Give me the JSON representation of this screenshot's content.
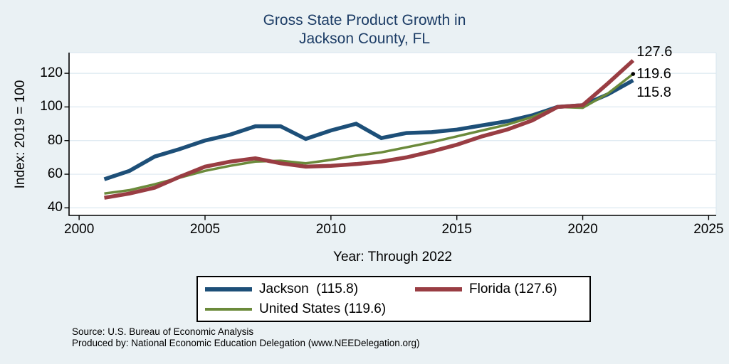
{
  "title": {
    "line1": "Gross State Product Growth in",
    "line2": "Jackson County, FL"
  },
  "footer": {
    "source": "Source: U.S. Bureau of Economic Analysis",
    "produced_by": "Produced by: National Economic Education Delegation (www.NEEDelegation.org)"
  },
  "colors": {
    "background": "#eaf1f4",
    "plot_background": "#ffffff",
    "gridline": "#dce8f0",
    "axis": "#000000",
    "title_text": "#1d3d66",
    "jackson_line": "#1d4f78",
    "florida_line": "#993d43",
    "united_states_line": "#6b8a3b",
    "end_marker": "#000000"
  },
  "chart_data": {
    "type": "line",
    "title": "Gross State Product Growth in Jackson County, FL",
    "xlabel": "Year: Through 2022",
    "ylabel": "Index: 2019 = 100",
    "x_ticks": [
      2000,
      2005,
      2010,
      2015,
      2020,
      2025
    ],
    "y_ticks": [
      40,
      60,
      80,
      100,
      120
    ],
    "xlim": [
      1999.6,
      2025.3
    ],
    "ylim": [
      35.5,
      132.3
    ],
    "grid": true,
    "legend_position": "bottom",
    "x": [
      2001,
      2002,
      2003,
      2004,
      2005,
      2006,
      2007,
      2008,
      2009,
      2010,
      2011,
      2012,
      2013,
      2014,
      2015,
      2016,
      2017,
      2018,
      2019,
      2020,
      2021,
      2022
    ],
    "series": [
      {
        "name": "Jackson",
        "legend_label": "Jackson  (115.8)",
        "color": "#1d4f78",
        "line_width": 5.5,
        "end_label": "115.8",
        "end_label_dy": 17,
        "end_marker": false,
        "values": [
          57,
          62,
          70.5,
          75,
          80,
          83.5,
          88.5,
          88.5,
          81,
          86,
          90,
          81.5,
          84.5,
          85,
          86.5,
          89,
          91.5,
          95,
          100,
          101,
          107.5,
          115.8
        ]
      },
      {
        "name": "Florida",
        "legend_label": "Florida (127.6)",
        "color": "#993d43",
        "line_width": 5.5,
        "end_label": "127.6",
        "end_label_dy": -12,
        "end_marker": false,
        "values": [
          46,
          48.5,
          52,
          58.5,
          64.5,
          67.5,
          69.5,
          66.5,
          64.5,
          65,
          66,
          67.5,
          70,
          73.5,
          77.5,
          82.5,
          86.5,
          92,
          100,
          101,
          114,
          127.6
        ]
      },
      {
        "name": "United States",
        "legend_label": "United States (119.6)",
        "color": "#6b8a3b",
        "line_width": 3.5,
        "end_label": "119.6",
        "end_label_dy": 0,
        "end_marker": true,
        "values": [
          48.5,
          50.5,
          54,
          58,
          62,
          65,
          67.5,
          68,
          66.5,
          68.5,
          71,
          73,
          76,
          79,
          82.5,
          86,
          89.5,
          94,
          100,
          99.5,
          108,
          119.6
        ]
      }
    ],
    "draw_order": [
      0,
      2,
      1
    ]
  }
}
